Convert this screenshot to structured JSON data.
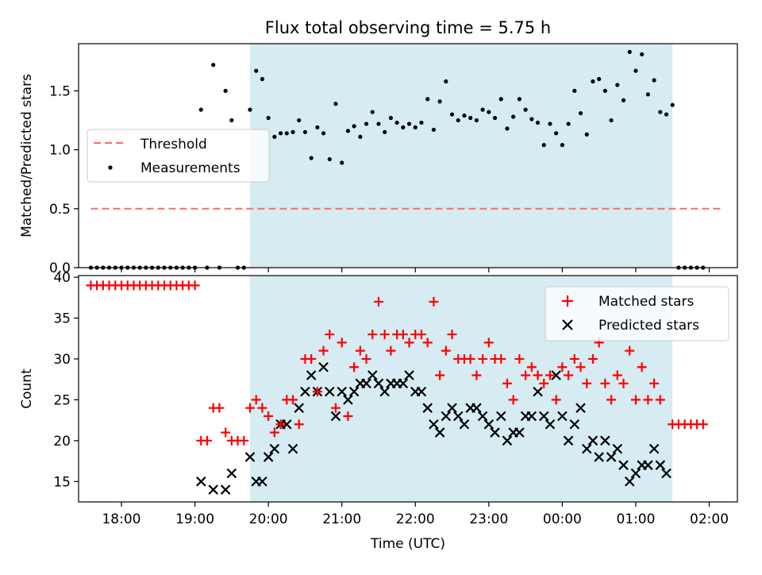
{
  "title": "Flux total observing time = 5.75 h",
  "colors": {
    "observing_window": "#add8e6",
    "threshold": "#ff7070",
    "measurements": "#000000",
    "matched": "#ff0000",
    "predicted": "#000000"
  },
  "chart_data": [
    {
      "type": "scatter",
      "ylabel": "Matched/Predicted stars",
      "ylim": [
        0,
        1.9
      ],
      "yticks": [
        "0.0",
        "0.5",
        "1.0",
        "1.5"
      ],
      "xlim": [
        "17:25",
        "02:23"
      ],
      "shaded_window": [
        "19:45",
        "01:30"
      ],
      "legend_position": "center-left",
      "legend": [
        {
          "label": "Threshold",
          "kind": "dashed-line"
        },
        {
          "label": "Measurements",
          "kind": "dot"
        }
      ],
      "threshold": {
        "y": 0.5,
        "x": [
          "17:35",
          "02:10"
        ]
      },
      "measurements": [
        [
          "17:35",
          0
        ],
        [
          "17:40",
          0
        ],
        [
          "17:45",
          0
        ],
        [
          "17:50",
          0
        ],
        [
          "17:55",
          0
        ],
        [
          "18:00",
          0
        ],
        [
          "18:05",
          0
        ],
        [
          "18:10",
          0
        ],
        [
          "18:15",
          0
        ],
        [
          "18:20",
          0
        ],
        [
          "18:25",
          0
        ],
        [
          "18:30",
          0
        ],
        [
          "18:35",
          0
        ],
        [
          "18:40",
          0
        ],
        [
          "18:45",
          0
        ],
        [
          "18:50",
          0
        ],
        [
          "18:55",
          0
        ],
        [
          "19:00",
          0
        ],
        [
          "19:05",
          1.34
        ],
        [
          "19:10",
          0
        ],
        [
          "19:15",
          1.72
        ],
        [
          "19:20",
          0
        ],
        [
          "19:25",
          1.5
        ],
        [
          "19:30",
          1.25
        ],
        [
          "19:35",
          0
        ],
        [
          "19:40",
          0
        ],
        [
          "19:45",
          1.34
        ],
        [
          "19:50",
          1.67
        ],
        [
          "19:55",
          1.6
        ],
        [
          "20:00",
          1.27
        ],
        [
          "20:05",
          1.11
        ],
        [
          "20:10",
          1.14
        ],
        [
          "20:15",
          1.14
        ],
        [
          "20:20",
          1.15
        ],
        [
          "20:25",
          1.25
        ],
        [
          "20:30",
          1.15
        ],
        [
          "20:35",
          0.93
        ],
        [
          "20:40",
          1.19
        ],
        [
          "20:45",
          1.14
        ],
        [
          "20:50",
          0.92
        ],
        [
          "20:55",
          1.39
        ],
        [
          "21:00",
          0.89
        ],
        [
          "21:05",
          1.16
        ],
        [
          "21:10",
          1.2
        ],
        [
          "21:15",
          1.11
        ],
        [
          "21:20",
          1.22
        ],
        [
          "21:25",
          1.32
        ],
        [
          "21:30",
          1.22
        ],
        [
          "21:35",
          1.15
        ],
        [
          "21:40",
          1.27
        ],
        [
          "21:45",
          1.23
        ],
        [
          "21:50",
          1.19
        ],
        [
          "21:55",
          1.22
        ],
        [
          "22:00",
          1.19
        ],
        [
          "22:05",
          1.23
        ],
        [
          "22:10",
          1.43
        ],
        [
          "22:15",
          1.17
        ],
        [
          "22:20",
          1.41
        ],
        [
          "22:25",
          1.58
        ],
        [
          "22:30",
          1.3
        ],
        [
          "22:35",
          1.25
        ],
        [
          "22:40",
          1.29
        ],
        [
          "22:45",
          1.27
        ],
        [
          "22:50",
          1.25
        ],
        [
          "22:55",
          1.34
        ],
        [
          "23:00",
          1.32
        ],
        [
          "23:05",
          1.27
        ],
        [
          "23:10",
          1.43
        ],
        [
          "23:15",
          1.18
        ],
        [
          "23:20",
          1.28
        ],
        [
          "23:25",
          1.43
        ],
        [
          "23:30",
          1.34
        ],
        [
          "23:35",
          1.26
        ],
        [
          "23:40",
          1.23
        ],
        [
          "23:45",
          1.04
        ],
        [
          "23:50",
          1.22
        ],
        [
          "23:55",
          1.14
        ],
        [
          "00:00",
          1.04
        ],
        [
          "00:05",
          1.22
        ],
        [
          "00:10",
          1.5
        ],
        [
          "00:15",
          1.31
        ],
        [
          "00:20",
          1.13
        ],
        [
          "00:25",
          1.58
        ],
        [
          "00:30",
          1.6
        ],
        [
          "00:35",
          1.5
        ],
        [
          "00:40",
          1.25
        ],
        [
          "00:45",
          1.55
        ],
        [
          "00:50",
          1.42
        ],
        [
          "00:55",
          1.83
        ],
        [
          "01:00",
          1.67
        ],
        [
          "01:05",
          1.81
        ],
        [
          "01:10",
          1.47
        ],
        [
          "01:15",
          1.59
        ],
        [
          "01:20",
          1.32
        ],
        [
          "01:25",
          1.3
        ],
        [
          "01:30",
          1.38
        ],
        [
          "01:35",
          0
        ],
        [
          "01:40",
          0
        ],
        [
          "01:45",
          0
        ],
        [
          "01:50",
          0
        ],
        [
          "01:55",
          0
        ]
      ]
    },
    {
      "type": "scatter",
      "xlabel": "Time (UTC)",
      "ylabel": "Count",
      "ylim": [
        12.5,
        40.2
      ],
      "yticks": [
        "15",
        "20",
        "25",
        "30",
        "35",
        "40"
      ],
      "xlim": [
        "17:25",
        "02:23"
      ],
      "xticks": [
        "18:00",
        "19:00",
        "20:00",
        "21:00",
        "22:00",
        "23:00",
        "00:00",
        "01:00",
        "02:00"
      ],
      "shaded_window": [
        "19:45",
        "01:30"
      ],
      "legend_position": "top-right",
      "series": [
        {
          "name": "Matched stars",
          "marker": "plus",
          "points": [
            [
              "17:35",
              39
            ],
            [
              "17:40",
              39
            ],
            [
              "17:45",
              39
            ],
            [
              "17:50",
              39
            ],
            [
              "17:55",
              39
            ],
            [
              "18:00",
              39
            ],
            [
              "18:05",
              39
            ],
            [
              "18:10",
              39
            ],
            [
              "18:15",
              39
            ],
            [
              "18:20",
              39
            ],
            [
              "18:25",
              39
            ],
            [
              "18:30",
              39
            ],
            [
              "18:35",
              39
            ],
            [
              "18:40",
              39
            ],
            [
              "18:45",
              39
            ],
            [
              "18:50",
              39
            ],
            [
              "18:55",
              39
            ],
            [
              "19:00",
              39
            ],
            [
              "19:05",
              20
            ],
            [
              "19:10",
              20
            ],
            [
              "19:15",
              24
            ],
            [
              "19:20",
              24
            ],
            [
              "19:25",
              21
            ],
            [
              "19:30",
              20
            ],
            [
              "19:35",
              20
            ],
            [
              "19:40",
              20
            ],
            [
              "19:45",
              24
            ],
            [
              "19:50",
              25
            ],
            [
              "19:55",
              24
            ],
            [
              "20:00",
              23
            ],
            [
              "20:05",
              21
            ],
            [
              "20:10",
              22
            ],
            [
              "20:15",
              25
            ],
            [
              "20:20",
              25
            ],
            [
              "20:25",
              22
            ],
            [
              "20:30",
              30
            ],
            [
              "20:35",
              30
            ],
            [
              "20:40",
              26
            ],
            [
              "20:45",
              31
            ],
            [
              "20:50",
              33
            ],
            [
              "20:55",
              24
            ],
            [
              "21:00",
              32
            ],
            [
              "21:05",
              23
            ],
            [
              "21:10",
              29
            ],
            [
              "21:15",
              31
            ],
            [
              "21:20",
              30
            ],
            [
              "21:25",
              33
            ],
            [
              "21:30",
              37
            ],
            [
              "21:35",
              33
            ],
            [
              "21:40",
              31
            ],
            [
              "21:45",
              33
            ],
            [
              "21:50",
              33
            ],
            [
              "21:55",
              32
            ],
            [
              "22:00",
              33
            ],
            [
              "22:05",
              33
            ],
            [
              "22:10",
              32
            ],
            [
              "22:15",
              37
            ],
            [
              "22:20",
              28
            ],
            [
              "22:25",
              31
            ],
            [
              "22:30",
              33
            ],
            [
              "22:35",
              30
            ],
            [
              "22:40",
              30
            ],
            [
              "22:45",
              30
            ],
            [
              "22:50",
              28
            ],
            [
              "22:55",
              30
            ],
            [
              "23:00",
              32
            ],
            [
              "23:05",
              30
            ],
            [
              "23:10",
              30
            ],
            [
              "23:15",
              27
            ],
            [
              "23:20",
              25
            ],
            [
              "23:25",
              30
            ],
            [
              "23:30",
              28
            ],
            [
              "23:35",
              29
            ],
            [
              "23:40",
              28
            ],
            [
              "23:45",
              27
            ],
            [
              "23:50",
              28
            ],
            [
              "23:55",
              25
            ],
            [
              "00:00",
              29
            ],
            [
              "00:05",
              28
            ],
            [
              "00:10",
              30
            ],
            [
              "00:15",
              29
            ],
            [
              "00:20",
              27
            ],
            [
              "00:25",
              30
            ],
            [
              "00:30",
              32
            ],
            [
              "00:35",
              27
            ],
            [
              "00:40",
              25
            ],
            [
              "00:45",
              28
            ],
            [
              "00:50",
              27
            ],
            [
              "00:55",
              31
            ],
            [
              "01:00",
              25
            ],
            [
              "01:05",
              29
            ],
            [
              "01:10",
              25
            ],
            [
              "01:15",
              27
            ],
            [
              "01:20",
              25
            ],
            [
              "01:30",
              22
            ],
            [
              "01:35",
              22
            ],
            [
              "01:40",
              22
            ],
            [
              "01:45",
              22
            ],
            [
              "01:50",
              22
            ],
            [
              "01:55",
              22
            ]
          ]
        },
        {
          "name": "Predicted stars",
          "marker": "x",
          "points": [
            [
              "19:05",
              15
            ],
            [
              "19:15",
              14
            ],
            [
              "19:25",
              14
            ],
            [
              "19:30",
              16
            ],
            [
              "19:45",
              18
            ],
            [
              "19:50",
              15
            ],
            [
              "19:55",
              15
            ],
            [
              "20:00",
              18
            ],
            [
              "20:05",
              19
            ],
            [
              "20:10",
              22
            ],
            [
              "20:15",
              22
            ],
            [
              "20:20",
              19
            ],
            [
              "20:25",
              24
            ],
            [
              "20:30",
              26
            ],
            [
              "20:35",
              28
            ],
            [
              "20:40",
              26
            ],
            [
              "20:45",
              29
            ],
            [
              "20:50",
              26
            ],
            [
              "20:55",
              23
            ],
            [
              "21:00",
              26
            ],
            [
              "21:05",
              25
            ],
            [
              "21:10",
              26
            ],
            [
              "21:15",
              27
            ],
            [
              "21:20",
              27
            ],
            [
              "21:25",
              28
            ],
            [
              "21:30",
              27
            ],
            [
              "21:35",
              26
            ],
            [
              "21:40",
              27
            ],
            [
              "21:45",
              27
            ],
            [
              "21:50",
              27
            ],
            [
              "21:55",
              28
            ],
            [
              "22:00",
              26
            ],
            [
              "22:05",
              26
            ],
            [
              "22:10",
              24
            ],
            [
              "22:15",
              22
            ],
            [
              "22:20",
              21
            ],
            [
              "22:25",
              23
            ],
            [
              "22:30",
              24
            ],
            [
              "22:35",
              23
            ],
            [
              "22:40",
              22
            ],
            [
              "22:45",
              24
            ],
            [
              "22:50",
              24
            ],
            [
              "22:55",
              23
            ],
            [
              "23:00",
              22
            ],
            [
              "23:05",
              21
            ],
            [
              "23:10",
              23
            ],
            [
              "23:15",
              20
            ],
            [
              "23:20",
              21
            ],
            [
              "23:25",
              21
            ],
            [
              "23:30",
              23
            ],
            [
              "23:35",
              23
            ],
            [
              "23:40",
              26
            ],
            [
              "23:45",
              23
            ],
            [
              "23:50",
              22
            ],
            [
              "23:55",
              28
            ],
            [
              "00:00",
              23
            ],
            [
              "00:05",
              20
            ],
            [
              "00:10",
              22
            ],
            [
              "00:15",
              24
            ],
            [
              "00:20",
              19
            ],
            [
              "00:25",
              20
            ],
            [
              "00:30",
              18
            ],
            [
              "00:35",
              20
            ],
            [
              "00:40",
              18
            ],
            [
              "00:45",
              19
            ],
            [
              "00:50",
              17
            ],
            [
              "00:55",
              15
            ],
            [
              "01:00",
              16
            ],
            [
              "01:05",
              17
            ],
            [
              "01:10",
              17
            ],
            [
              "01:15",
              19
            ],
            [
              "01:20",
              17
            ],
            [
              "01:25",
              16
            ]
          ]
        }
      ]
    }
  ]
}
